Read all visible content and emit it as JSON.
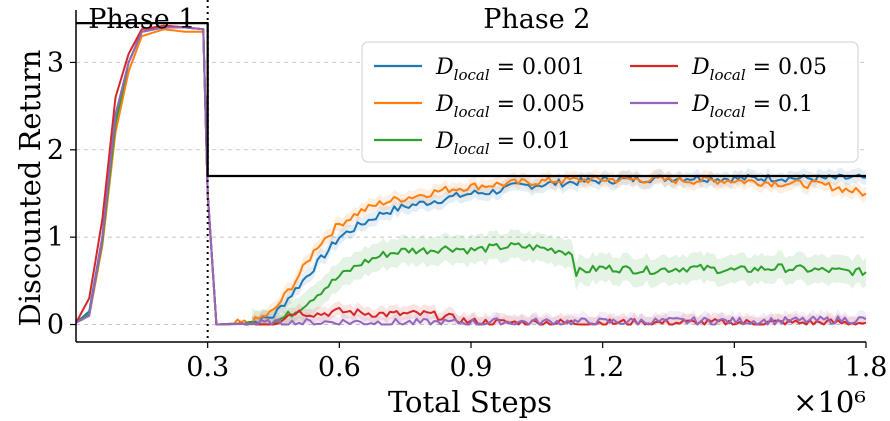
{
  "chart_data": {
    "type": "line",
    "xlabel": "Total Steps",
    "ylabel": "Discounted Return",
    "x_multiplier_label": "×10⁶",
    "xlim": [
      0.0,
      1.8
    ],
    "ylim": [
      -0.2,
      3.6
    ],
    "xticks": [
      0.3,
      0.6,
      0.9,
      1.2,
      1.5,
      1.8
    ],
    "xtick_labels": [
      "0.3",
      "0.6",
      "0.9",
      "1.2",
      "1.5",
      "1.8"
    ],
    "yticks": [
      0,
      1,
      2,
      3
    ],
    "ytick_labels": [
      "0",
      "1",
      "2",
      "3"
    ],
    "grid": "y-dashed",
    "legend_placement": "top-right",
    "phase_divider_x": 0.3,
    "phases": [
      {
        "label": "Phase 1",
        "x_center": 0.15
      },
      {
        "label": "Phase 2",
        "x_center": 1.05
      }
    ],
    "series": [
      {
        "name": "D_local = 0.001",
        "legend_base": "D",
        "legend_sub": "local",
        "legend_value": " = 0.001",
        "color": "#1f77b4",
        "points": [
          [
            0.0,
            0.02
          ],
          [
            0.03,
            0.15
          ],
          [
            0.06,
            1.0
          ],
          [
            0.09,
            2.4
          ],
          [
            0.12,
            3.0
          ],
          [
            0.15,
            3.35
          ],
          [
            0.2,
            3.42
          ],
          [
            0.25,
            3.4
          ],
          [
            0.29,
            3.38
          ],
          [
            0.3,
            1.5
          ],
          [
            0.32,
            0.0
          ],
          [
            0.4,
            0.02
          ],
          [
            0.45,
            0.1
          ],
          [
            0.5,
            0.4
          ],
          [
            0.55,
            0.7
          ],
          [
            0.6,
            1.0
          ],
          [
            0.65,
            1.15
          ],
          [
            0.7,
            1.28
          ],
          [
            0.75,
            1.35
          ],
          [
            0.8,
            1.4
          ],
          [
            0.85,
            1.45
          ],
          [
            0.9,
            1.5
          ],
          [
            0.95,
            1.52
          ],
          [
            1.0,
            1.58
          ],
          [
            1.1,
            1.62
          ],
          [
            1.2,
            1.65
          ],
          [
            1.3,
            1.67
          ],
          [
            1.4,
            1.68
          ],
          [
            1.5,
            1.67
          ],
          [
            1.6,
            1.68
          ],
          [
            1.7,
            1.67
          ],
          [
            1.8,
            1.68
          ]
        ]
      },
      {
        "name": "D_local = 0.005",
        "legend_base": "D",
        "legend_sub": "local",
        "legend_value": " = 0.005",
        "color": "#ff7f0e",
        "points": [
          [
            0.0,
            0.02
          ],
          [
            0.03,
            0.1
          ],
          [
            0.06,
            0.9
          ],
          [
            0.09,
            2.2
          ],
          [
            0.12,
            2.9
          ],
          [
            0.15,
            3.3
          ],
          [
            0.2,
            3.38
          ],
          [
            0.25,
            3.35
          ],
          [
            0.29,
            3.35
          ],
          [
            0.3,
            1.5
          ],
          [
            0.32,
            0.0
          ],
          [
            0.4,
            0.02
          ],
          [
            0.45,
            0.15
          ],
          [
            0.5,
            0.5
          ],
          [
            0.55,
            0.9
          ],
          [
            0.6,
            1.15
          ],
          [
            0.65,
            1.3
          ],
          [
            0.7,
            1.4
          ],
          [
            0.75,
            1.45
          ],
          [
            0.8,
            1.5
          ],
          [
            0.85,
            1.55
          ],
          [
            0.9,
            1.58
          ],
          [
            0.95,
            1.6
          ],
          [
            1.0,
            1.62
          ],
          [
            1.1,
            1.65
          ],
          [
            1.2,
            1.66
          ],
          [
            1.3,
            1.66
          ],
          [
            1.4,
            1.65
          ],
          [
            1.5,
            1.65
          ],
          [
            1.6,
            1.62
          ],
          [
            1.7,
            1.6
          ],
          [
            1.8,
            1.5
          ]
        ]
      },
      {
        "name": "D_local = 0.01",
        "legend_base": "D",
        "legend_sub": "local",
        "legend_value": " = 0.01",
        "color": "#2ca02c",
        "points": [
          [
            0.0,
            0.02
          ],
          [
            0.03,
            0.12
          ],
          [
            0.06,
            0.95
          ],
          [
            0.09,
            2.3
          ],
          [
            0.12,
            3.0
          ],
          [
            0.15,
            3.35
          ],
          [
            0.2,
            3.4
          ],
          [
            0.25,
            3.4
          ],
          [
            0.29,
            3.38
          ],
          [
            0.3,
            1.5
          ],
          [
            0.32,
            0.0
          ],
          [
            0.45,
            0.02
          ],
          [
            0.5,
            0.15
          ],
          [
            0.55,
            0.35
          ],
          [
            0.6,
            0.55
          ],
          [
            0.65,
            0.7
          ],
          [
            0.7,
            0.8
          ],
          [
            0.75,
            0.85
          ],
          [
            0.8,
            0.85
          ],
          [
            0.85,
            0.88
          ],
          [
            0.9,
            0.85
          ],
          [
            0.95,
            0.88
          ],
          [
            1.0,
            0.9
          ],
          [
            1.05,
            0.88
          ],
          [
            1.1,
            0.85
          ],
          [
            1.13,
            0.82
          ],
          [
            1.14,
            0.6
          ],
          [
            1.2,
            0.65
          ],
          [
            1.3,
            0.62
          ],
          [
            1.4,
            0.65
          ],
          [
            1.5,
            0.62
          ],
          [
            1.6,
            0.65
          ],
          [
            1.7,
            0.62
          ],
          [
            1.8,
            0.6
          ]
        ]
      },
      {
        "name": "D_local = 0.05",
        "legend_base": "D",
        "legend_sub": "local",
        "legend_value": " = 0.05",
        "color": "#d62728",
        "points": [
          [
            0.0,
            0.02
          ],
          [
            0.03,
            0.3
          ],
          [
            0.06,
            1.2
          ],
          [
            0.09,
            2.6
          ],
          [
            0.12,
            3.1
          ],
          [
            0.15,
            3.38
          ],
          [
            0.2,
            3.42
          ],
          [
            0.25,
            3.4
          ],
          [
            0.29,
            3.38
          ],
          [
            0.3,
            1.5
          ],
          [
            0.32,
            0.0
          ],
          [
            0.45,
            0.02
          ],
          [
            0.5,
            0.15
          ],
          [
            0.55,
            0.12
          ],
          [
            0.6,
            0.15
          ],
          [
            0.7,
            0.12
          ],
          [
            0.8,
            0.12
          ],
          [
            0.85,
            0.08
          ],
          [
            0.9,
            0.03
          ],
          [
            1.0,
            0.02
          ],
          [
            1.2,
            0.02
          ],
          [
            1.4,
            0.02
          ],
          [
            1.6,
            0.02
          ],
          [
            1.8,
            0.02
          ]
        ]
      },
      {
        "name": "D_local = 0.1",
        "legend_base": "D",
        "legend_sub": "local",
        "legend_value": " = 0.1",
        "color": "#9467bd",
        "points": [
          [
            0.0,
            0.02
          ],
          [
            0.03,
            0.1
          ],
          [
            0.06,
            1.0
          ],
          [
            0.09,
            2.4
          ],
          [
            0.12,
            3.0
          ],
          [
            0.15,
            3.35
          ],
          [
            0.2,
            3.4
          ],
          [
            0.25,
            3.4
          ],
          [
            0.29,
            3.38
          ],
          [
            0.3,
            1.5
          ],
          [
            0.32,
            0.0
          ],
          [
            0.5,
            0.02
          ],
          [
            0.6,
            0.03
          ],
          [
            0.8,
            0.02
          ],
          [
            1.0,
            0.03
          ],
          [
            1.2,
            0.03
          ],
          [
            1.4,
            0.04
          ],
          [
            1.6,
            0.04
          ],
          [
            1.8,
            0.06
          ]
        ]
      },
      {
        "name": "optimal",
        "legend_base": "optimal",
        "legend_sub": "",
        "legend_value": "",
        "color": "#000000",
        "points": [
          [
            0.0,
            3.45
          ],
          [
            0.3,
            3.45
          ],
          [
            0.3,
            1.7
          ],
          [
            1.8,
            1.7
          ]
        ]
      }
    ]
  }
}
